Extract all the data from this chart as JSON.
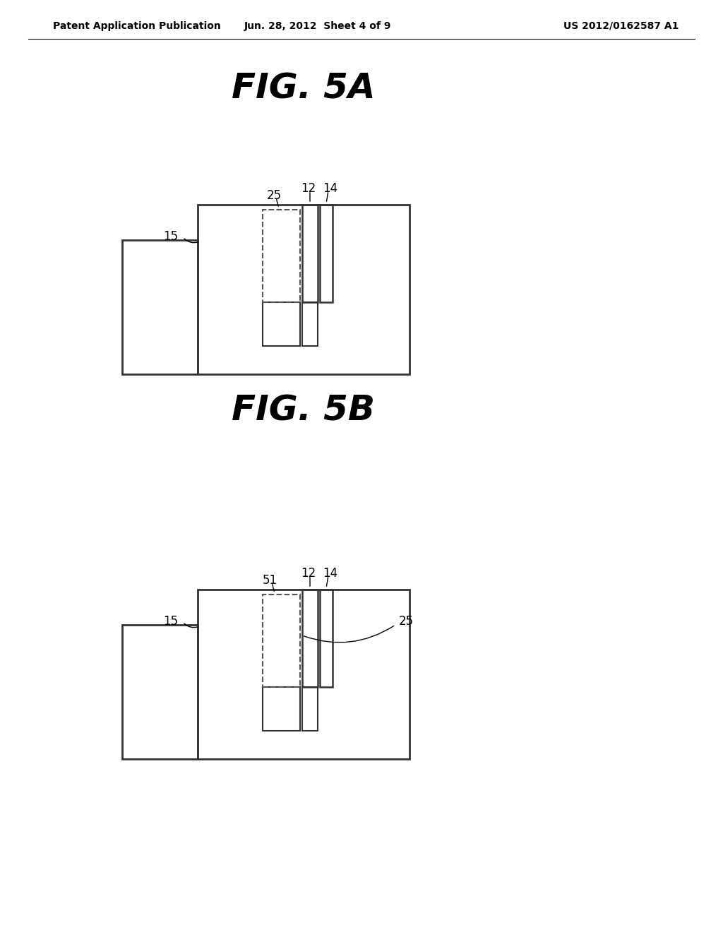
{
  "background_color": "#ffffff",
  "header_left": "Patent Application Publication",
  "header_center": "Jun. 28, 2012  Sheet 4 of 9",
  "header_right": "US 2012/0162587 A1",
  "fig5a_title": "FIG. 5A",
  "fig5b_title": "FIG. 5B",
  "line_color": "#333333",
  "dashed_color": "#555555"
}
